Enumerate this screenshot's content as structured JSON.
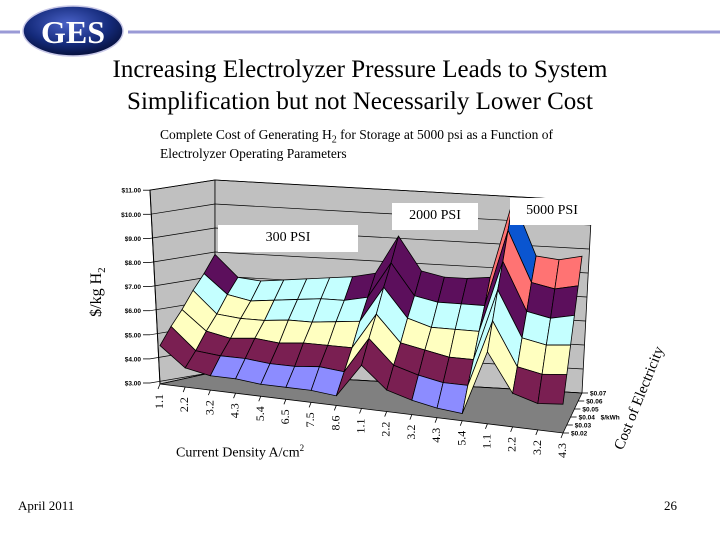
{
  "logo": {
    "text": "GES"
  },
  "title": {
    "line1": "Increasing Electrolyzer Pressure Leads to System",
    "line2": "Simplification but not Necessarily Lower Cost"
  },
  "subtitle": {
    "line1_pre": "Complete Cost of  Generating H",
    "line1_sub": "2",
    "line1_post": " for Storage at 5000 psi as a Function of",
    "line2": "Electrolyzer Operating Parameters"
  },
  "footer": {
    "date": "April 2011",
    "page": "26"
  },
  "colors": {
    "accent_line": "#9a9ad6",
    "wall": "#c0c0c0",
    "floor": "#808080"
  },
  "chart_data": {
    "type": "3d-surface",
    "ylabel": "$/kg H",
    "ylabel_sub": "2",
    "xlabel": "Current Density A/cm",
    "xlabel_sup": "2",
    "zlabel": "Cost of Electricity",
    "zunit": "$/kWh",
    "ylim": [
      3,
      11
    ],
    "yticks": [
      "$3.00",
      "$4.00",
      "$5.00",
      "$6.00",
      "$7.00",
      "$8.00",
      "$9.00",
      "$10.00",
      "$11.00"
    ],
    "groups": [
      {
        "label": "300 PSI"
      },
      {
        "label": "2000 PSI"
      },
      {
        "label": "5000 PSI"
      }
    ],
    "categories": [
      "1.1",
      "2.2",
      "3.2",
      "4.3",
      "5.4",
      "6.5",
      "7.5",
      "8.6",
      "1.1",
      "2.2",
      "3.2",
      "4.3",
      "5.4",
      "1.1",
      "2.2",
      "3.2",
      "4.3"
    ],
    "depth_categories": [
      "$0.02",
      "$0.03",
      "$0.04",
      "$0.05",
      "$0.06",
      "$0.07"
    ],
    "series": [
      {
        "name": "$0.02",
        "values": [
          4.6,
          3.8,
          3.6,
          3.6,
          3.5,
          3.5,
          3.5,
          3.4,
          4.8,
          3.9,
          3.6,
          3.4,
          3.3,
          6.0,
          4.4,
          4.1,
          4.2
        ]
      },
      {
        "name": "$0.03",
        "values": [
          5.3,
          4.4,
          4.3,
          4.3,
          4.2,
          4.2,
          4.3,
          4.2,
          5.7,
          4.7,
          4.4,
          4.2,
          4.2,
          7.0,
          5.2,
          5.0,
          5.1
        ]
      },
      {
        "name": "$0.04",
        "values": [
          5.9,
          5.1,
          4.9,
          5.0,
          4.9,
          5.0,
          5.0,
          5.0,
          6.5,
          5.4,
          5.2,
          5.0,
          5.0,
          8.0,
          6.1,
          5.9,
          6.0
        ]
      },
      {
        "name": "$0.05",
        "values": [
          6.6,
          5.7,
          5.6,
          5.6,
          5.7,
          5.7,
          5.8,
          5.9,
          7.4,
          6.2,
          5.9,
          5.9,
          5.9,
          8.9,
          6.9,
          6.7,
          6.9
        ]
      },
      {
        "name": "$0.06",
        "values": [
          7.2,
          6.4,
          6.2,
          6.3,
          6.4,
          6.5,
          6.5,
          6.7,
          8.2,
          6.9,
          6.7,
          6.7,
          6.7,
          9.9,
          7.8,
          7.6,
          7.8
        ]
      },
      {
        "name": "$0.07",
        "values": [
          7.9,
          7.0,
          6.9,
          7.0,
          7.1,
          7.2,
          7.3,
          7.5,
          9.1,
          7.7,
          7.5,
          7.5,
          7.6,
          10.9,
          8.6,
          8.5,
          8.7
        ]
      }
    ],
    "band_colors": [
      "#8c8cff",
      "#7a1f52",
      "#ffffc0",
      "#c4ffff",
      "#5c0f5c",
      "#ff7373",
      "#0a55d0",
      "#c8c8ff"
    ],
    "grid": true
  }
}
